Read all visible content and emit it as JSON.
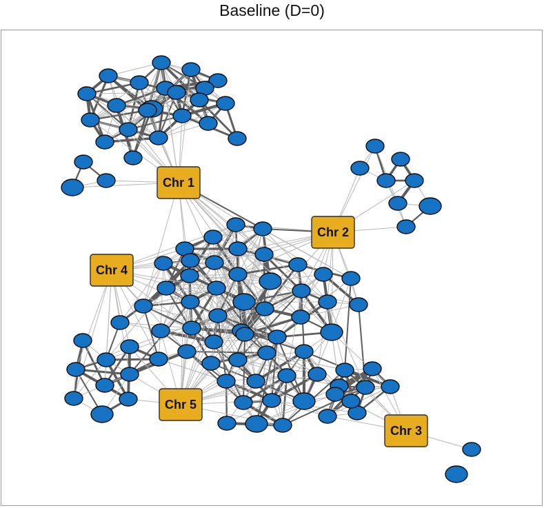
{
  "title": "Baseline (D=0)",
  "colors": {
    "node_fill": "#1673c4",
    "node_stroke": "#0d0d0d",
    "hub_fill": "#e8ac1f",
    "hub_stroke": "#2a2a2a",
    "edge_strong": "#5e5e5e",
    "edge_weak": "#b8b8b8"
  },
  "hubs": [
    {
      "id": "H1",
      "label": "Chr 1"
    },
    {
      "id": "H2",
      "label": "Chr 2"
    },
    {
      "id": "H3",
      "label": "Chr 3"
    },
    {
      "id": "H4",
      "label": "Chr 4"
    },
    {
      "id": "H5",
      "label": "Chr 5"
    }
  ]
}
